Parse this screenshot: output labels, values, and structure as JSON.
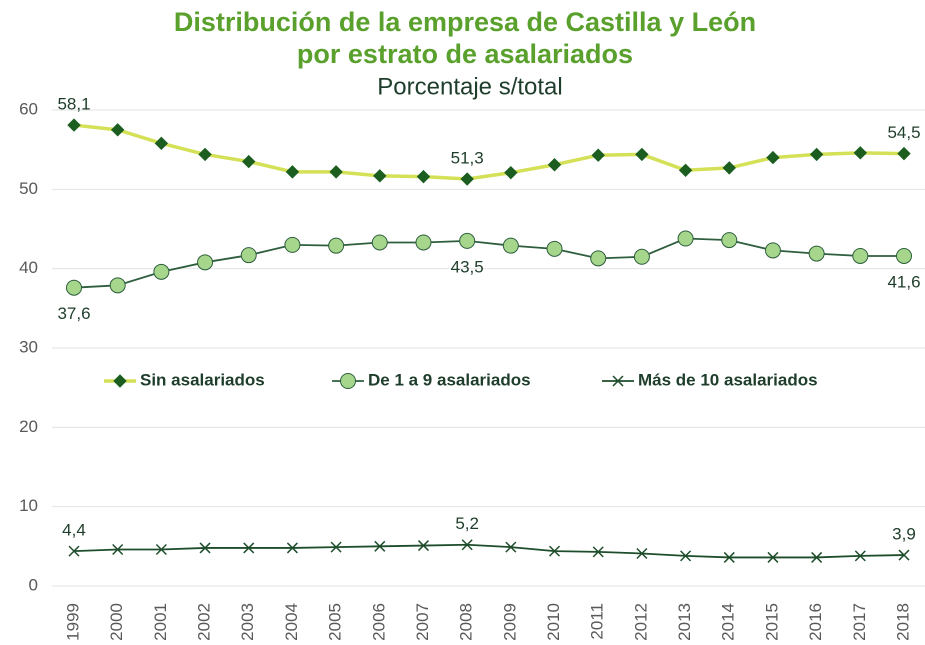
{
  "chart_data": {
    "type": "line",
    "title": [
      "Distribución de la empresa de Castilla y León",
      "por estrato de asalariados"
    ],
    "subtitle": "Porcentaje s/total",
    "title_color": "#5aa02c",
    "categories": [
      "1999",
      "2000",
      "2001",
      "2002",
      "2003",
      "2004",
      "2005",
      "2006",
      "2007",
      "2008",
      "2009",
      "2010",
      "2011",
      "2012",
      "2013",
      "2014",
      "2015",
      "2016",
      "2017",
      "2018"
    ],
    "series": [
      {
        "name": "Sin asalariados",
        "color": "#d4e157",
        "marker": "diamond",
        "marker_color": "#1b5e20",
        "label_position": "above",
        "values": [
          58.1,
          57.5,
          55.8,
          54.4,
          53.5,
          52.2,
          52.2,
          51.7,
          51.6,
          51.3,
          52.1,
          53.1,
          54.3,
          54.4,
          52.4,
          52.7,
          54.0,
          54.4,
          54.6,
          54.5
        ],
        "value_labels": [
          "58,1",
          null,
          null,
          null,
          null,
          null,
          null,
          null,
          null,
          "51,3",
          null,
          null,
          null,
          null,
          null,
          null,
          null,
          null,
          null,
          "54,5"
        ]
      },
      {
        "name": "De 1 a 9 asalariados",
        "color": "#2e5e3e",
        "marker": "circle",
        "marker_color": "#a5d68c",
        "label_position": "below",
        "values": [
          37.6,
          37.9,
          39.6,
          40.8,
          41.7,
          43.0,
          42.9,
          43.3,
          43.3,
          43.5,
          42.9,
          42.5,
          41.3,
          41.5,
          43.8,
          43.6,
          42.3,
          41.9,
          41.6,
          41.6
        ],
        "value_labels": [
          "37,6",
          null,
          null,
          null,
          null,
          null,
          null,
          null,
          null,
          "43,5",
          null,
          null,
          null,
          null,
          null,
          null,
          null,
          null,
          null,
          "41,6"
        ]
      },
      {
        "name": "Más de 10 asalariados",
        "color": "#1e4d2b",
        "marker": "x",
        "marker_color": "#1e4d2b",
        "label_position": "above",
        "values": [
          4.4,
          4.6,
          4.6,
          4.8,
          4.8,
          4.8,
          4.9,
          5.0,
          5.1,
          5.2,
          4.9,
          4.4,
          4.3,
          4.1,
          3.8,
          3.6,
          3.6,
          3.6,
          3.8,
          3.9
        ],
        "value_labels": [
          "4,4",
          null,
          null,
          null,
          null,
          null,
          null,
          null,
          null,
          "5,2",
          null,
          null,
          null,
          null,
          null,
          null,
          null,
          null,
          null,
          "3,9"
        ]
      }
    ],
    "ylim": [
      0,
      60
    ],
    "yticks": [
      0,
      10,
      20,
      30,
      40,
      50,
      60
    ],
    "grid": true
  }
}
